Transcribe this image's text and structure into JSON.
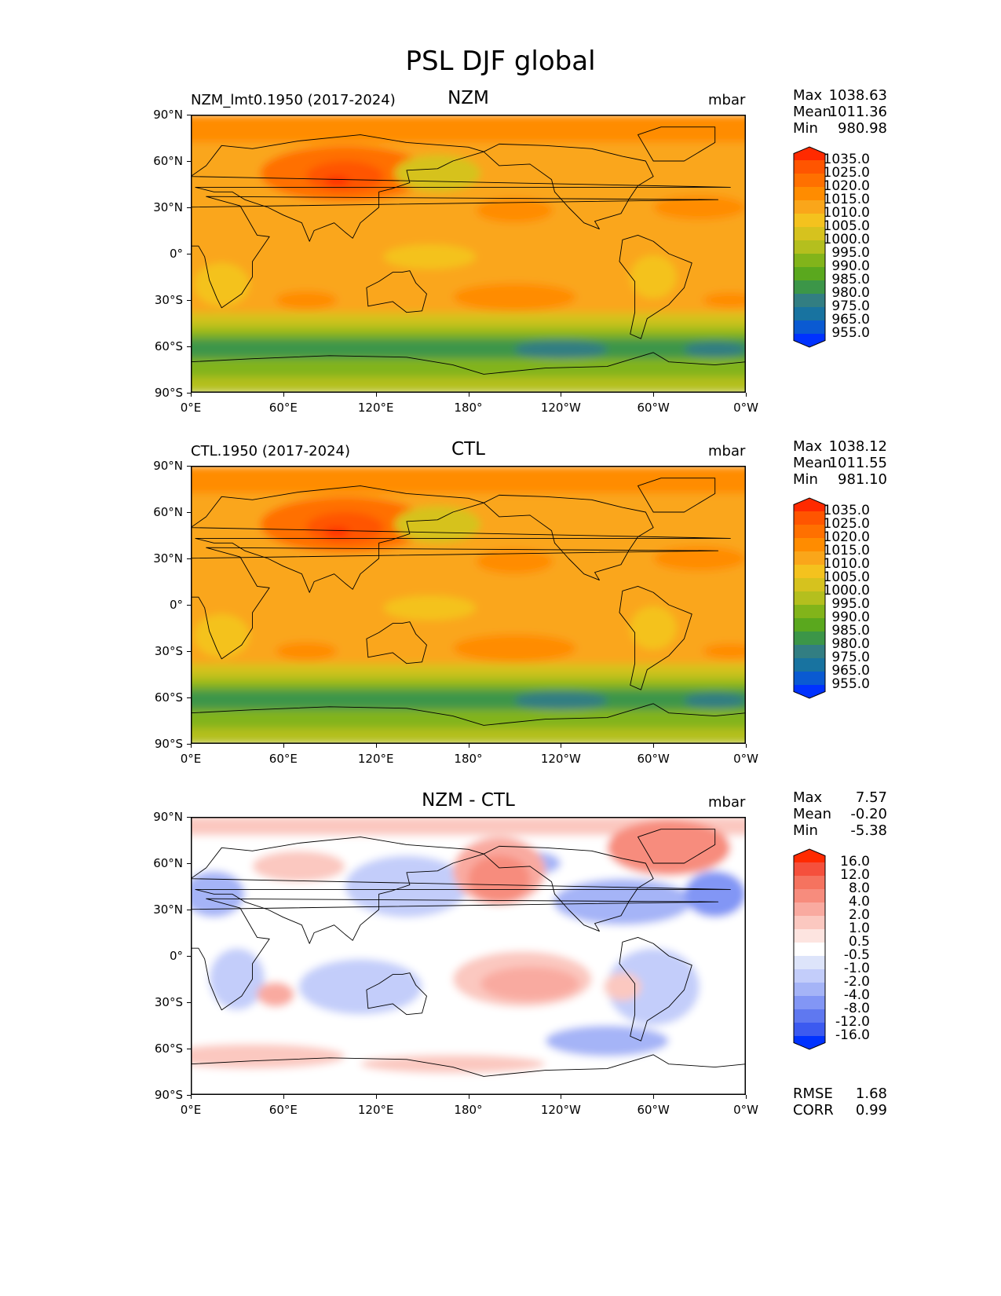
{
  "title": "PSL DJF global",
  "x_ticks": [
    "0°E",
    "60°E",
    "120°E",
    "180°",
    "120°W",
    "60°W",
    "0°W"
  ],
  "y_ticks": [
    "90°N",
    "60°N",
    "30°N",
    "0°",
    "30°S",
    "60°S",
    "90°S"
  ],
  "chart_data": [
    {
      "type": "heatmap",
      "name": "NZM",
      "left_label": "NZM_lmt0.1950 (2017-2024)",
      "units": "mbar",
      "xlabel": "",
      "ylabel": "",
      "xlim": [
        0,
        360
      ],
      "ylim": [
        -90,
        90
      ],
      "stats": [
        {
          "label": "Max",
          "value": "1038.63"
        },
        {
          "label": "Mean",
          "value": "1011.36"
        },
        {
          "label": "Min",
          "value": "980.98"
        }
      ],
      "levels": [
        "1035.0",
        "1025.0",
        "1020.0",
        "1015.0",
        "1010.0",
        "1005.0",
        "1000.0",
        "995.0",
        "990.0",
        "985.0",
        "980.0",
        "975.0",
        "965.0",
        "955.0"
      ],
      "colors": [
        "#ff2a00",
        "#ff5500",
        "#ff7000",
        "#ff8c00",
        "#faa61a",
        "#f4c21e",
        "#d6c21e",
        "#b4bf1e",
        "#82b41a",
        "#5aa81e",
        "#3c9648",
        "#327e82",
        "#1873a0",
        "#0a5ad2",
        "#0032ff"
      ]
    },
    {
      "type": "heatmap",
      "name": "CTL",
      "left_label": "CTL.1950 (2017-2024)",
      "units": "mbar",
      "xlabel": "",
      "ylabel": "",
      "xlim": [
        0,
        360
      ],
      "ylim": [
        -90,
        90
      ],
      "stats": [
        {
          "label": "Max",
          "value": "1038.12"
        },
        {
          "label": "Mean",
          "value": "1011.55"
        },
        {
          "label": "Min",
          "value": "981.10"
        }
      ],
      "levels": [
        "1035.0",
        "1025.0",
        "1020.0",
        "1015.0",
        "1010.0",
        "1005.0",
        "1000.0",
        "995.0",
        "990.0",
        "985.0",
        "980.0",
        "975.0",
        "965.0",
        "955.0"
      ],
      "colors": [
        "#ff2a00",
        "#ff5500",
        "#ff7000",
        "#ff8c00",
        "#faa61a",
        "#f4c21e",
        "#d6c21e",
        "#b4bf1e",
        "#82b41a",
        "#5aa81e",
        "#3c9648",
        "#327e82",
        "#1873a0",
        "#0a5ad2",
        "#0032ff"
      ]
    },
    {
      "type": "heatmap",
      "name": "NZM - CTL",
      "left_label": "",
      "units": "mbar",
      "xlabel": "",
      "ylabel": "",
      "xlim": [
        0,
        360
      ],
      "ylim": [
        -90,
        90
      ],
      "stats": [
        {
          "label": "Max",
          "value": "7.57"
        },
        {
          "label": "Mean",
          "value": "-0.20"
        },
        {
          "label": "Min",
          "value": "-5.38"
        }
      ],
      "levels": [
        "16.0",
        "12.0",
        "8.0",
        "4.0",
        "2.0",
        "1.0",
        "0.5",
        "-0.5",
        "-1.0",
        "-2.0",
        "-4.0",
        "-8.0",
        "-12.0",
        "-16.0"
      ],
      "colors": [
        "#ff2a00",
        "#f5503c",
        "#f5735f",
        "#f78c7d",
        "#f9aaa0",
        "#fbc8c0",
        "#fde4e0",
        "#ffffff",
        "#dde4fa",
        "#c3cdfa",
        "#a5b4f7",
        "#8296f5",
        "#5f78f0",
        "#3c5af0",
        "#0032ff"
      ],
      "footer": [
        {
          "label": "RMSE",
          "value": "1.68"
        },
        {
          "label": "CORR",
          "value": "0.99"
        }
      ]
    }
  ]
}
